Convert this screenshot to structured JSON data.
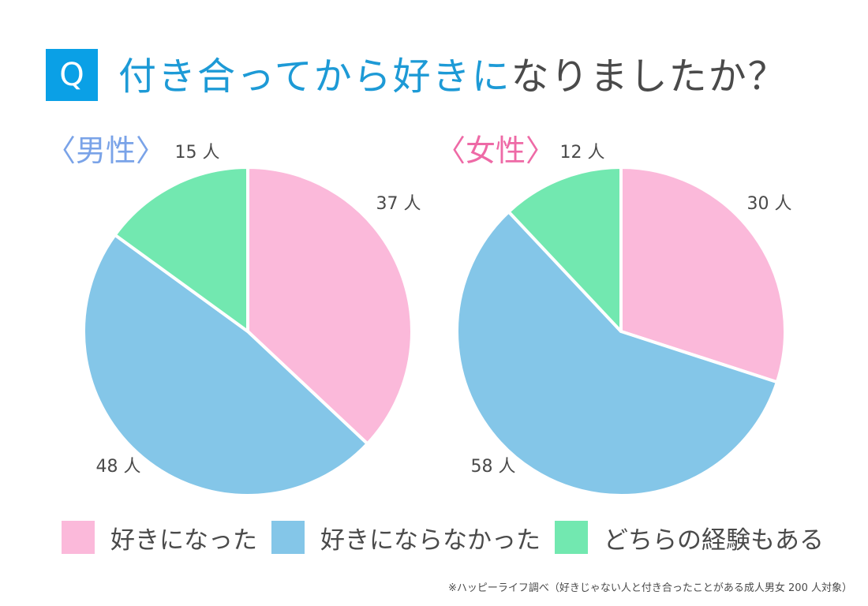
{
  "header": {
    "badge": "Q",
    "title_highlight": "付き合ってから好きに",
    "title_rest": "なりましたか？"
  },
  "colors": {
    "accent": "#1d9ad6",
    "badge_bg": "#0aa0e6",
    "male": "#7aa3e8",
    "female": "#ee6aa6",
    "pink": "#fbb9da",
    "blue": "#84c6e8",
    "green": "#72e8b0"
  },
  "chart_data": [
    {
      "type": "pie",
      "title": "〈男性〉",
      "categories": [
        "好きになった",
        "好きにならなかった",
        "どちらの経験もある"
      ],
      "values": [
        37,
        48,
        15
      ],
      "labels": [
        "37 人",
        "48 人",
        "15 人"
      ],
      "colors": [
        "#fbb9da",
        "#84c6e8",
        "#72e8b0"
      ]
    },
    {
      "type": "pie",
      "title": "〈女性〉",
      "categories": [
        "好きになった",
        "好きにならなかった",
        "どちらの経験もある"
      ],
      "values": [
        30,
        58,
        12
      ],
      "labels": [
        "30 人",
        "58 人",
        "12 人"
      ],
      "colors": [
        "#fbb9da",
        "#84c6e8",
        "#72e8b0"
      ]
    }
  ],
  "legend": [
    {
      "label": "好きになった",
      "color": "#fbb9da"
    },
    {
      "label": "好きにならなかった",
      "color": "#84c6e8"
    },
    {
      "label": "どちらの経験もある",
      "color": "#72e8b0"
    }
  ],
  "footnote": "※ハッピーライフ調べ（好きじゃない人と付き合ったことがある成人男女 200 人対象）"
}
